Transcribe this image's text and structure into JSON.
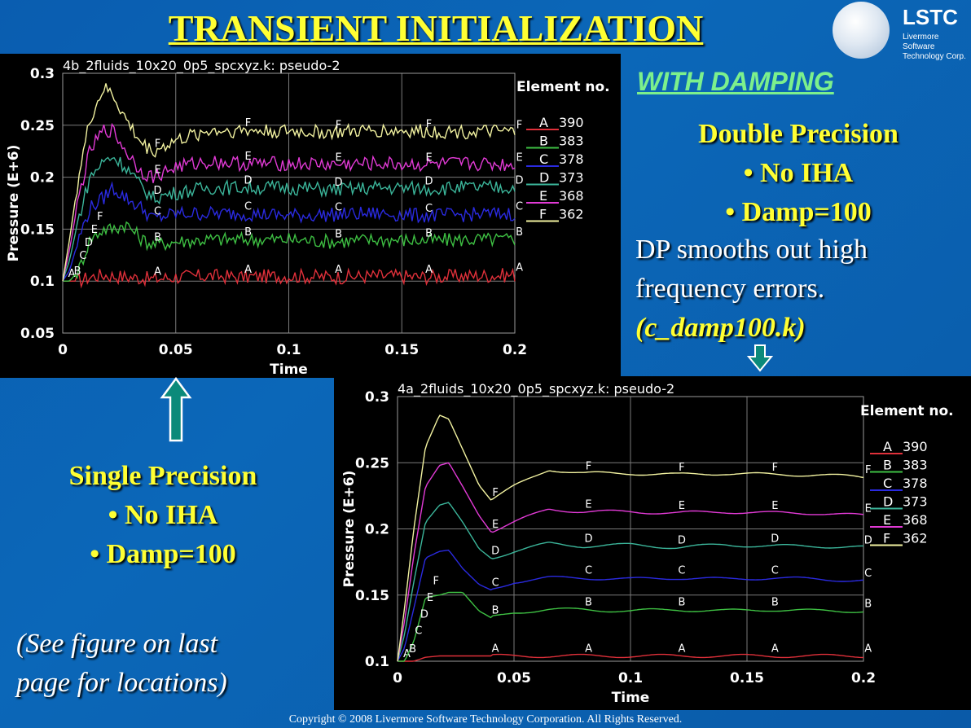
{
  "title": "TRANSIENT INITIALIZATION",
  "logo": {
    "name": "LSTC",
    "line1": "Livermore Software",
    "line2": "Technology Corp."
  },
  "with_damping": "WITH DAMPING",
  "dp_text": {
    "heading": "Double Precision",
    "bullet1": "• No IHA",
    "bullet2": "• Damp=100",
    "line1": "DP smooths out high",
    "line2": "frequency errors.",
    "file": "(c_damp100.k)"
  },
  "sp_text": {
    "heading": "Single Precision",
    "bullet1": "• No IHA",
    "bullet2": "• Damp=100"
  },
  "note": {
    "line1": "(See figure on last",
    "line2": "page for locations)"
  },
  "copyright": "Copyright © 2008 Livermore Software Technology Corporation.  All Rights Reserved.",
  "colors": {
    "A": "#e0303a",
    "B": "#3ec043",
    "C": "#2a2ae0",
    "D": "#3bb59a",
    "E": "#e23ad6",
    "F": "#f2f2a0"
  },
  "chart_data": [
    {
      "type": "line",
      "title": "4b_2fluids_10x20_0p5_spcxyz.k: pseudo-2",
      "xlabel": "Time",
      "ylabel": "Pressure (E+6)",
      "xlim": [
        0,
        0.2
      ],
      "ylim": [
        0.05,
        0.3
      ],
      "xticks": [
        "0",
        "0.05",
        "0.1",
        "0.15",
        "0.2"
      ],
      "yticks": [
        "0.05",
        "0.1",
        "0.15",
        "0.2",
        "0.25",
        "0.3"
      ],
      "legend_title": "Element no.",
      "noisy": true,
      "x": [
        0,
        0.003,
        0.007,
        0.012,
        0.018,
        0.022,
        0.028,
        0.035,
        0.04,
        0.05,
        0.065,
        0.08,
        0.1,
        0.12,
        0.14,
        0.16,
        0.18,
        0.2
      ],
      "series": [
        {
          "name": "A",
          "element": "390",
          "values": [
            0.1,
            0.1,
            0.1,
            0.104,
            0.106,
            0.105,
            0.104,
            0.103,
            0.102,
            0.104,
            0.105,
            0.104,
            0.105,
            0.104,
            0.105,
            0.104,
            0.105,
            0.106
          ]
        },
        {
          "name": "B",
          "element": "383",
          "values": [
            0.1,
            0.1,
            0.11,
            0.14,
            0.15,
            0.15,
            0.155,
            0.14,
            0.135,
            0.138,
            0.14,
            0.14,
            0.14,
            0.138,
            0.14,
            0.139,
            0.14,
            0.14
          ]
        },
        {
          "name": "C",
          "element": "378",
          "values": [
            0.1,
            0.11,
            0.14,
            0.17,
            0.18,
            0.19,
            0.18,
            0.17,
            0.16,
            0.165,
            0.165,
            0.165,
            0.163,
            0.164,
            0.165,
            0.163,
            0.164,
            0.165
          ]
        },
        {
          "name": "D",
          "element": "373",
          "values": [
            0.1,
            0.12,
            0.16,
            0.2,
            0.215,
            0.22,
            0.21,
            0.19,
            0.18,
            0.185,
            0.19,
            0.19,
            0.19,
            0.188,
            0.19,
            0.189,
            0.19,
            0.19
          ]
        },
        {
          "name": "E",
          "element": "368",
          "values": [
            0.1,
            0.13,
            0.18,
            0.225,
            0.245,
            0.245,
            0.225,
            0.205,
            0.2,
            0.21,
            0.215,
            0.213,
            0.213,
            0.212,
            0.213,
            0.212,
            0.213,
            0.212
          ]
        },
        {
          "name": "F",
          "element": "362",
          "values": [
            0.1,
            0.14,
            0.2,
            0.255,
            0.285,
            0.28,
            0.255,
            0.232,
            0.225,
            0.235,
            0.245,
            0.245,
            0.244,
            0.243,
            0.245,
            0.244,
            0.244,
            0.243
          ]
        }
      ]
    },
    {
      "type": "line",
      "title": "4a_2fluids_10x20_0p5_spcxyz.k: pseudo-2",
      "xlabel": "Time",
      "ylabel": "Pressure (E+6)",
      "xlim": [
        0,
        0.2
      ],
      "ylim": [
        0.1,
        0.3
      ],
      "xticks": [
        "0",
        "0.05",
        "0.1",
        "0.15",
        "0.2"
      ],
      "yticks": [
        "0.1",
        "0.15",
        "0.2",
        "0.25",
        "0.3"
      ],
      "legend_title": "Element no.",
      "noisy": false,
      "x": [
        0,
        0.003,
        0.007,
        0.012,
        0.018,
        0.022,
        0.028,
        0.035,
        0.04,
        0.05,
        0.065,
        0.08,
        0.1,
        0.12,
        0.14,
        0.16,
        0.18,
        0.2
      ],
      "series": [
        {
          "name": "A",
          "element": "390",
          "values": [
            0.1,
            0.1,
            0.1,
            0.103,
            0.104,
            0.104,
            0.104,
            0.104,
            0.104,
            0.104,
            0.104,
            0.104,
            0.104,
            0.104,
            0.104,
            0.104,
            0.104,
            0.104
          ]
        },
        {
          "name": "B",
          "element": "383",
          "values": [
            0.1,
            0.1,
            0.115,
            0.148,
            0.15,
            0.152,
            0.152,
            0.138,
            0.133,
            0.137,
            0.139,
            0.139,
            0.138,
            0.139,
            0.138,
            0.139,
            0.138,
            0.138
          ]
        },
        {
          "name": "C",
          "element": "378",
          "values": [
            0.1,
            0.11,
            0.14,
            0.178,
            0.183,
            0.184,
            0.17,
            0.158,
            0.154,
            0.16,
            0.163,
            0.163,
            0.162,
            0.163,
            0.162,
            0.163,
            0.162,
            0.161
          ]
        },
        {
          "name": "D",
          "element": "373",
          "values": [
            0.1,
            0.12,
            0.16,
            0.205,
            0.218,
            0.22,
            0.205,
            0.185,
            0.178,
            0.183,
            0.189,
            0.187,
            0.188,
            0.186,
            0.188,
            0.187,
            0.187,
            0.186
          ]
        },
        {
          "name": "E",
          "element": "368",
          "values": [
            0.1,
            0.13,
            0.18,
            0.232,
            0.248,
            0.25,
            0.232,
            0.21,
            0.198,
            0.205,
            0.215,
            0.213,
            0.213,
            0.212,
            0.213,
            0.212,
            0.212,
            0.21
          ]
        },
        {
          "name": "F",
          "element": "362",
          "values": [
            0.1,
            0.14,
            0.2,
            0.262,
            0.286,
            0.283,
            0.26,
            0.233,
            0.222,
            0.232,
            0.245,
            0.242,
            0.242,
            0.241,
            0.242,
            0.241,
            0.241,
            0.239
          ]
        }
      ]
    }
  ]
}
